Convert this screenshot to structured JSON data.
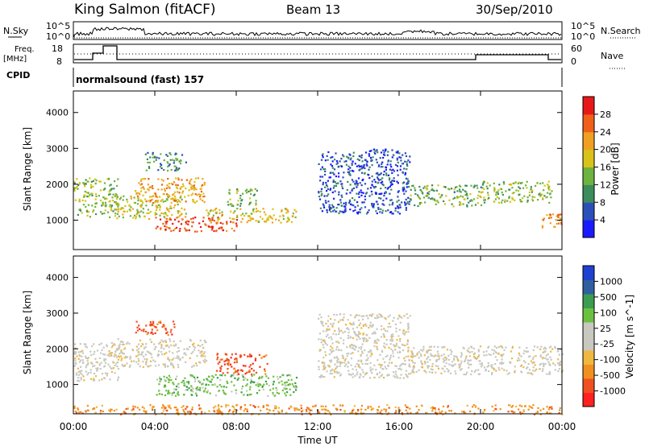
{
  "header": {
    "station": "King Salmon (fitACF)",
    "beam": "Beam 13",
    "date": "30/Sep/2010"
  },
  "aux_panels": {
    "nsky_label": "N.Sky",
    "nsky_ticks": [
      "10^5",
      "10^0"
    ],
    "nsearch_label": "N.Search",
    "freq_label_1": "Freq.",
    "freq_label_2": "[MHz]",
    "freq_ticks": [
      "18",
      "8"
    ],
    "nave_label": "Nave",
    "nave_ticks": [
      "60",
      "0"
    ],
    "cpid_label": "CPID",
    "cpid_value": "normalsound (fast) 157"
  },
  "colors": {
    "power_scale": [
      "#1a1aff",
      "#2a4fb8",
      "#3c8c5c",
      "#6db33f",
      "#d9c21a",
      "#f0a020",
      "#f06018",
      "#e81818"
    ],
    "velocity_scale": [
      "#ff2020",
      "#f05020",
      "#f09020",
      "#f0b840",
      "#c8c8c0",
      "#c8c8c0",
      "#6cc040",
      "#3c9c50",
      "#3060a0",
      "#2040d0"
    ]
  },
  "chart_data": [
    {
      "type": "heatmap",
      "panel": "power",
      "ylabel": "Slant Range [km]",
      "yticks": [
        "1000",
        "2000",
        "3000",
        "4000"
      ],
      "ylim": [
        180,
        4600
      ],
      "colorbar_label": "Power [dB]",
      "colorbar_ticks": [
        "4",
        "8",
        "12",
        "16",
        "20",
        "24",
        "28"
      ],
      "colorbar_range": [
        0,
        30
      ],
      "regions": [
        {
          "t": [
            0.0,
            2.2
          ],
          "range": [
            1100,
            2200
          ],
          "level": 14
        },
        {
          "t": [
            2.0,
            5.5
          ],
          "range": [
            1050,
            1700
          ],
          "level": 16
        },
        {
          "t": [
            3.0,
            6.5
          ],
          "range": [
            1500,
            2200
          ],
          "level": 20
        },
        {
          "t": [
            4.0,
            8.0
          ],
          "range": [
            700,
            1100
          ],
          "level": 26
        },
        {
          "t": [
            6.5,
            11.0
          ],
          "range": [
            950,
            1350
          ],
          "level": 18
        },
        {
          "t": [
            3.5,
            5.5
          ],
          "range": [
            2400,
            2900
          ],
          "level": 10
        },
        {
          "t": [
            7.5,
            9.0
          ],
          "range": [
            1400,
            1900
          ],
          "level": 12
        },
        {
          "t": [
            12.0,
            16.5
          ],
          "range": [
            1200,
            3000
          ],
          "level": 5
        },
        {
          "t": [
            16.5,
            20.0
          ],
          "range": [
            1400,
            2000
          ],
          "level": 12
        },
        {
          "t": [
            20.0,
            23.5
          ],
          "range": [
            1500,
            2100
          ],
          "level": 14
        },
        {
          "t": [
            23.0,
            24.0
          ],
          "range": [
            800,
            1200
          ],
          "level": 22
        }
      ]
    },
    {
      "type": "heatmap",
      "panel": "velocity",
      "ylabel": "Slant Range [km]",
      "yticks": [
        "1000",
        "2000",
        "3000",
        "4000"
      ],
      "ylim": [
        180,
        4600
      ],
      "colorbar_label": "Velocity [m s^-1]",
      "colorbar_ticks": [
        "1000",
        "500",
        "100",
        "25",
        "-25",
        "-100",
        "-500",
        "-1000"
      ],
      "xlabel": "Time UT",
      "xticks": [
        "00:00",
        "04:00",
        "08:00",
        "12:00",
        "16:00",
        "20:00",
        "00:00"
      ],
      "xlim": [
        0,
        24
      ],
      "regions": [
        {
          "t": [
            0.0,
            2.2
          ],
          "range": [
            1100,
            2200
          ],
          "level": 0
        },
        {
          "t": [
            2.0,
            6.5
          ],
          "range": [
            1500,
            2300
          ],
          "level": 0
        },
        {
          "t": [
            4.0,
            11.0
          ],
          "range": [
            700,
            1300
          ],
          "level": 100
        },
        {
          "t": [
            7.0,
            9.5
          ],
          "range": [
            1300,
            1900
          ],
          "level": -500
        },
        {
          "t": [
            3.0,
            5.0
          ],
          "range": [
            2400,
            2800
          ],
          "level": -500
        },
        {
          "t": [
            12.0,
            16.5
          ],
          "range": [
            1200,
            3000
          ],
          "level": 0
        },
        {
          "t": [
            16.5,
            24.0
          ],
          "range": [
            1300,
            2100
          ],
          "level": 0
        },
        {
          "t": [
            0.0,
            24.0
          ],
          "range": [
            180,
            450
          ],
          "level": -100
        }
      ]
    }
  ]
}
